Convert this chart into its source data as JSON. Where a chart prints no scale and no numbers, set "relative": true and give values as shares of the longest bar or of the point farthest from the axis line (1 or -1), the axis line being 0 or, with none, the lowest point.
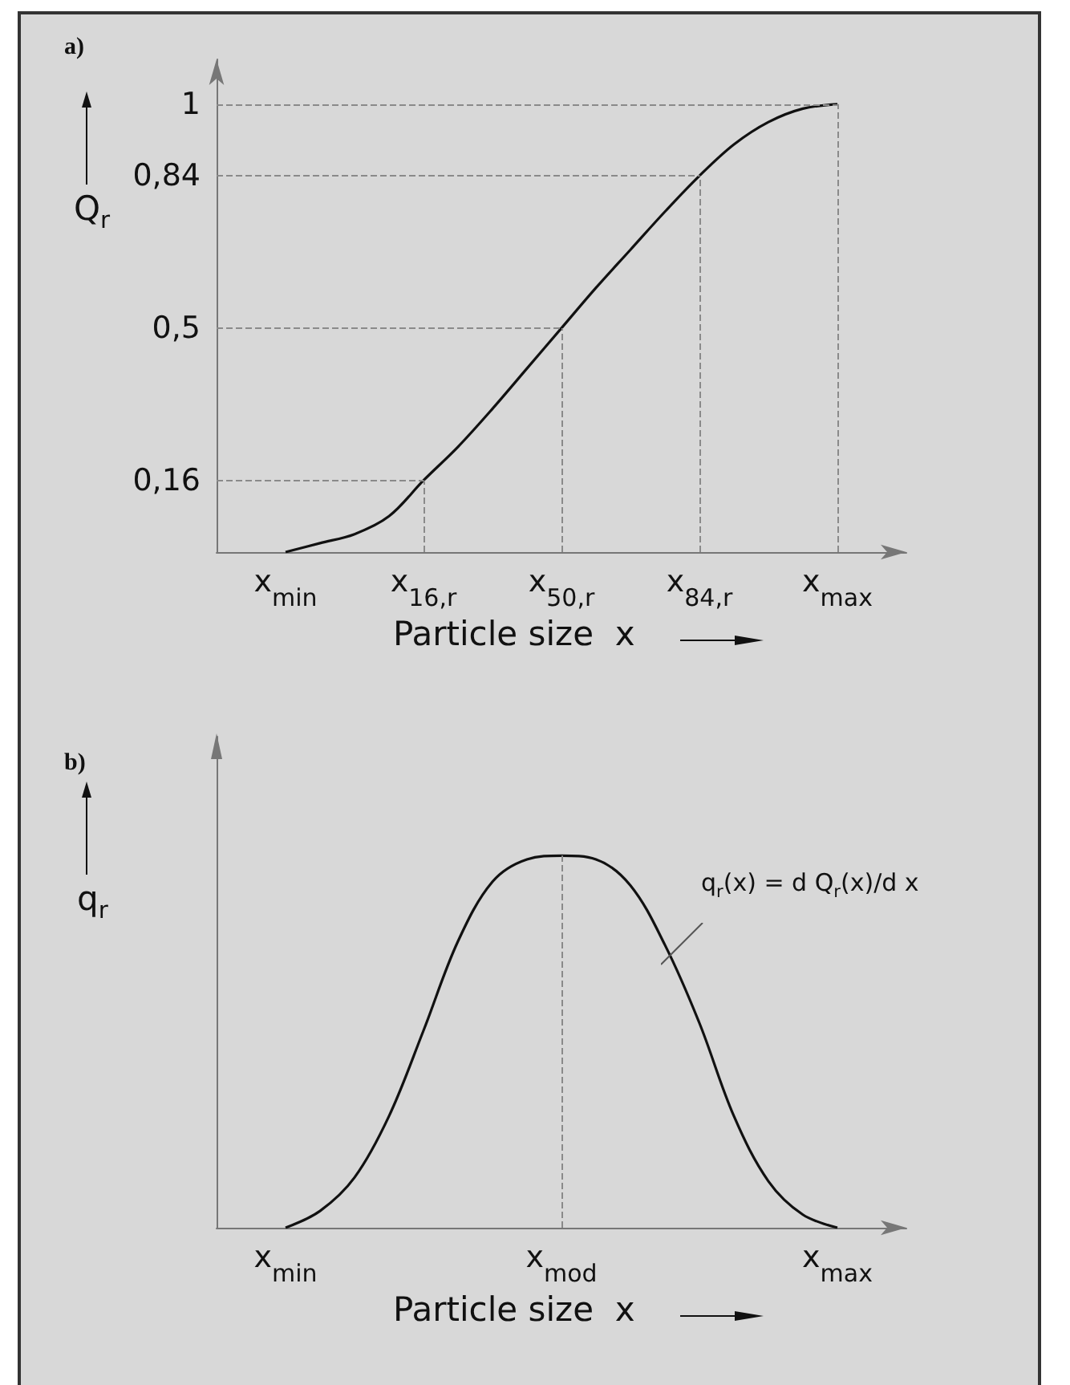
{
  "chart_data": [
    {
      "type": "line",
      "title": "a)",
      "xlabel": "Particle size  x",
      "ylabel": "Q$_{r}$",
      "color": "#111111",
      "marker": "none",
      "categories": [
        null,
        null,
        "x$_{min}$",
        null,
        null,
        null,
        "x$_{16,r}$",
        null,
        null,
        null,
        "x$_{50,r}$",
        null,
        null,
        null,
        "x$_{84,r}$",
        null,
        null,
        null,
        "x$_{max}$",
        null,
        null
      ],
      "values": [
        null,
        null,
        0,
        0.02,
        0.04,
        0.08,
        0.16,
        0.235,
        0.32,
        0.41,
        0.5,
        0.59,
        0.675,
        0.76,
        0.84,
        0.91,
        0.96,
        0.99,
        1,
        null,
        null
      ],
      "ylim": [
        0,
        1.1
      ],
      "yticks": [
        {
          "value": 0.16,
          "label": "0,16"
        },
        {
          "value": 0.5,
          "label": "0,5"
        },
        {
          "value": 0.84,
          "label": "0,84"
        },
        1
      ],
      "ref_lines": [
        {
          "axis": "y",
          "value": 0.16,
          "line_style": "dashed"
        },
        {
          "axis": "y",
          "value": 0.5,
          "line_style": "dashed"
        },
        {
          "axis": "y",
          "value": 0.84,
          "line_style": "dashed"
        },
        {
          "axis": "y",
          "value": 1,
          "line_style": "dashed"
        },
        {
          "axis": "x",
          "value": "x$_{16,r}$",
          "line_style": "dashed"
        },
        {
          "axis": "x",
          "value": "x$_{50,r}$",
          "line_style": "dashed"
        },
        {
          "axis": "x",
          "value": "x$_{84,r}$",
          "line_style": "dashed"
        },
        {
          "axis": "x",
          "value": "x$_{max}$",
          "line_style": "dashed"
        }
      ]
    },
    {
      "type": "line",
      "title": "b)",
      "xlabel": "Particle size  x",
      "ylabel": "q$_{r}$",
      "color": "#111111",
      "marker": "none",
      "relative": true,
      "categories": [
        null,
        null,
        "x$_{min}$",
        null,
        null,
        null,
        null,
        null,
        null,
        null,
        "x$_{mod}$",
        null,
        null,
        null,
        null,
        null,
        null,
        null,
        "x$_{max}$",
        null,
        null
      ],
      "values": [
        null,
        null,
        0,
        0.045,
        0.135,
        0.3,
        0.53,
        0.77,
        0.93,
        0.99,
        1,
        0.99,
        0.92,
        0.76,
        0.55,
        0.3,
        0.125,
        0.035,
        0,
        null,
        null
      ],
      "ref_lines": [
        {
          "axis": "x",
          "value": "x$_{mod}$",
          "line_style": "dashed"
        }
      ],
      "annotations": [
        "q$_{r}$(x) = d Q$_{r}$(x)/d x"
      ]
    }
  ]
}
